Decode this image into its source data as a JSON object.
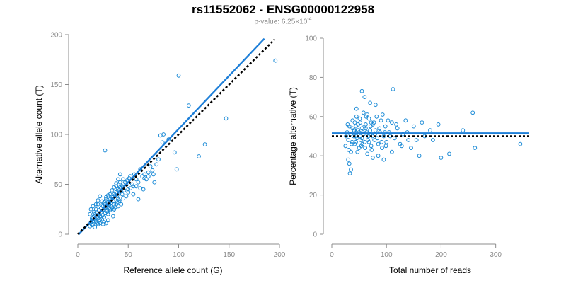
{
  "title": "rs11552062 - ENSG00000122958",
  "subtitle": {
    "prefix": "p-value: 6.25×10",
    "exponent": "-4"
  },
  "colors": {
    "points": "#1a8ad6",
    "fit_line": "#1e7fd8",
    "reference_line": "#000000",
    "axis": "#8c8c8c",
    "ticks": "#8a8a8a"
  },
  "chart_data": [
    {
      "type": "scatter",
      "xlabel": "Reference allele count (G)",
      "ylabel": "Alternative allele count (T)",
      "xlim": [
        0,
        200
      ],
      "ylim": [
        0,
        200
      ],
      "xticks": [
        0,
        50,
        100,
        150,
        200
      ],
      "yticks": [
        0,
        50,
        100,
        150,
        200
      ],
      "grid": false,
      "lines": [
        {
          "style": "solid",
          "color": "#1e7fd8",
          "points": [
            [
              1,
              0
            ],
            [
              185,
              196
            ]
          ]
        },
        {
          "style": "dotted",
          "color": "#000000",
          "points": [
            [
              0,
              0
            ],
            [
              195,
              195
            ]
          ]
        }
      ],
      "points": [
        [
          13,
          12
        ],
        [
          14,
          16
        ],
        [
          15,
          13
        ],
        [
          16,
          18
        ],
        [
          17,
          20
        ],
        [
          18,
          15
        ],
        [
          19,
          22
        ],
        [
          20,
          19
        ],
        [
          21,
          24
        ],
        [
          22,
          18
        ],
        [
          23,
          26
        ],
        [
          24,
          22
        ],
        [
          25,
          28
        ],
        [
          26,
          25
        ],
        [
          27,
          30
        ],
        [
          28,
          27
        ],
        [
          29,
          23
        ],
        [
          30,
          32
        ],
        [
          31,
          29
        ],
        [
          32,
          35
        ],
        [
          33,
          31
        ],
        [
          34,
          38
        ],
        [
          35,
          33
        ],
        [
          36,
          40
        ],
        [
          37,
          36
        ],
        [
          38,
          42
        ],
        [
          39,
          39
        ],
        [
          40,
          45
        ],
        [
          41,
          41
        ],
        [
          42,
          47
        ],
        [
          15,
          10
        ],
        [
          18,
          25
        ],
        [
          20,
          30
        ],
        [
          22,
          14
        ],
        [
          24,
          33
        ],
        [
          26,
          12
        ],
        [
          28,
          35
        ],
        [
          30,
          20
        ],
        [
          32,
          40
        ],
        [
          34,
          26
        ],
        [
          36,
          30
        ],
        [
          38,
          48
        ],
        [
          40,
          35
        ],
        [
          42,
          52
        ],
        [
          44,
          40
        ],
        [
          45,
          55
        ],
        [
          46,
          44
        ],
        [
          48,
          50
        ],
        [
          50,
          45
        ],
        [
          52,
          58
        ],
        [
          54,
          50
        ],
        [
          55,
          48
        ],
        [
          56,
          60
        ],
        [
          58,
          55
        ],
        [
          60,
          52
        ],
        [
          62,
          65
        ],
        [
          64,
          58
        ],
        [
          66,
          60
        ],
        [
          68,
          55
        ],
        [
          70,
          62
        ],
        [
          72,
          68
        ],
        [
          75,
          60
        ],
        [
          78,
          70
        ],
        [
          80,
          75
        ],
        [
          82,
          99
        ],
        [
          84,
          92
        ],
        [
          85,
          100
        ],
        [
          90,
          95
        ],
        [
          98,
          65
        ],
        [
          96,
          82
        ],
        [
          100,
          159
        ],
        [
          110,
          129
        ],
        [
          120,
          78
        ],
        [
          126,
          90
        ],
        [
          147,
          116
        ],
        [
          196,
          174
        ],
        [
          27,
          84
        ],
        [
          55,
          40
        ],
        [
          60,
          35
        ],
        [
          65,
          45
        ],
        [
          12,
          8
        ],
        [
          14,
          9
        ],
        [
          16,
          12
        ],
        [
          17,
          7
        ],
        [
          19,
          11
        ],
        [
          21,
          13
        ],
        [
          23,
          17
        ],
        [
          25,
          19
        ],
        [
          27,
          21
        ],
        [
          29,
          24
        ],
        [
          31,
          26
        ],
        [
          33,
          28
        ],
        [
          35,
          24
        ],
        [
          37,
          27
        ],
        [
          39,
          32
        ],
        [
          41,
          34
        ],
        [
          43,
          30
        ],
        [
          12,
          20
        ],
        [
          13,
          25
        ],
        [
          15,
          28
        ],
        [
          16,
          22
        ],
        [
          18,
          30
        ],
        [
          20,
          34
        ],
        [
          22,
          38
        ],
        [
          24,
          29
        ],
        [
          26,
          32
        ],
        [
          28,
          37
        ],
        [
          30,
          39
        ],
        [
          32,
          33
        ],
        [
          34,
          44
        ],
        [
          36,
          47
        ],
        [
          38,
          51
        ],
        [
          40,
          55
        ],
        [
          42,
          60
        ],
        [
          44,
          48
        ],
        [
          35,
          18
        ],
        [
          30,
          14
        ],
        [
          25,
          10
        ],
        [
          28,
          11
        ],
        [
          40,
          28
        ],
        [
          45,
          36
        ],
        [
          50,
          42
        ],
        [
          52,
          46
        ],
        [
          48,
          38
        ],
        [
          58,
          48
        ],
        [
          62,
          46
        ],
        [
          66,
          56
        ],
        [
          70,
          58
        ],
        [
          74,
          64
        ],
        [
          76,
          52
        ],
        [
          14,
          14
        ],
        [
          15,
          17
        ],
        [
          17,
          15
        ],
        [
          19,
          17
        ],
        [
          21,
          20
        ],
        [
          23,
          22
        ],
        [
          25,
          24
        ],
        [
          27,
          26
        ],
        [
          29,
          28
        ],
        [
          31,
          31
        ],
        [
          33,
          34
        ],
        [
          35,
          37
        ],
        [
          37,
          39
        ],
        [
          39,
          41
        ],
        [
          41,
          44
        ],
        [
          43,
          46
        ],
        [
          45,
          50
        ],
        [
          47,
          52
        ],
        [
          49,
          54
        ],
        [
          51,
          56
        ],
        [
          20,
          10
        ],
        [
          24,
          15
        ],
        [
          30,
          22
        ],
        [
          36,
          25
        ],
        [
          42,
          33
        ],
        [
          18,
          13
        ],
        [
          22,
          11
        ],
        [
          26,
          17
        ],
        [
          32,
          25
        ],
        [
          38,
          30
        ]
      ]
    },
    {
      "type": "scatter",
      "xlabel": "Total number of reads",
      "ylabel": "Percentage alternative (T)",
      "xlim": [
        0,
        360
      ],
      "ylim": [
        0,
        100
      ],
      "xticks": [
        0,
        100,
        200,
        300
      ],
      "yticks": [
        0,
        20,
        40,
        60,
        80,
        100
      ],
      "grid": false,
      "lines": [
        {
          "style": "solid",
          "color": "#1e7fd8",
          "points": [
            [
              0,
              51.5
            ],
            [
              360,
              51.5
            ]
          ]
        },
        {
          "style": "dotted",
          "color": "#000000",
          "points": [
            [
              0,
              50
            ],
            [
              360,
              50
            ]
          ]
        }
      ],
      "points": [
        [
          25,
          45
        ],
        [
          28,
          52
        ],
        [
          30,
          48
        ],
        [
          32,
          55
        ],
        [
          35,
          42
        ],
        [
          38,
          58
        ],
        [
          40,
          50
        ],
        [
          42,
          46
        ],
        [
          45,
          60
        ],
        [
          48,
          53
        ],
        [
          50,
          44
        ],
        [
          52,
          57
        ],
        [
          55,
          49
        ],
        [
          58,
          62
        ],
        [
          60,
          47
        ],
        [
          62,
          54
        ],
        [
          65,
          41
        ],
        [
          68,
          59
        ],
        [
          70,
          51
        ],
        [
          72,
          45
        ],
        [
          75,
          56
        ],
        [
          78,
          48
        ],
        [
          80,
          53
        ],
        [
          82,
          60
        ],
        [
          85,
          46
        ],
        [
          88,
          52
        ],
        [
          90,
          58
        ],
        [
          92,
          44
        ],
        [
          95,
          50
        ],
        [
          98,
          55
        ],
        [
          100,
          47
        ],
        [
          105,
          52
        ],
        [
          110,
          57
        ],
        [
          115,
          49
        ],
        [
          120,
          54
        ],
        [
          125,
          46
        ],
        [
          130,
          51
        ],
        [
          135,
          58
        ],
        [
          140,
          48
        ],
        [
          150,
          55
        ],
        [
          30,
          38
        ],
        [
          32,
          36
        ],
        [
          35,
          33
        ],
        [
          33,
          31
        ],
        [
          45,
          64
        ],
        [
          55,
          73
        ],
        [
          60,
          70
        ],
        [
          70,
          67
        ],
        [
          80,
          66
        ],
        [
          112,
          74
        ],
        [
          38,
          54
        ],
        [
          42,
          57
        ],
        [
          46,
          49
        ],
        [
          50,
          52
        ],
        [
          54,
          45
        ],
        [
          58,
          51
        ],
        [
          62,
          56
        ],
        [
          66,
          48
        ],
        [
          70,
          53
        ],
        [
          74,
          50
        ],
        [
          26,
          50
        ],
        [
          29,
          56
        ],
        [
          31,
          43
        ],
        [
          34,
          51
        ],
        [
          37,
          47
        ],
        [
          41,
          53
        ],
        [
          44,
          55
        ],
        [
          47,
          42
        ],
        [
          51,
          59
        ],
        [
          53,
          48
        ],
        [
          57,
          52
        ],
        [
          61,
          44
        ],
        [
          63,
          60
        ],
        [
          67,
          50
        ],
        [
          71,
          55
        ],
        [
          73,
          43
        ],
        [
          77,
          57
        ],
        [
          79,
          51
        ],
        [
          83,
          49
        ],
        [
          87,
          54
        ],
        [
          91,
          47
        ],
        [
          93,
          61
        ],
        [
          97,
          52
        ],
        [
          99,
          45
        ],
        [
          103,
          58
        ],
        [
          107,
          50
        ],
        [
          118,
          56
        ],
        [
          128,
          45
        ],
        [
          138,
          52
        ],
        [
          145,
          44
        ],
        [
          155,
          48
        ],
        [
          160,
          40
        ],
        [
          165,
          57
        ],
        [
          170,
          50
        ],
        [
          180,
          53
        ],
        [
          185,
          48
        ],
        [
          195,
          56
        ],
        [
          200,
          39
        ],
        [
          215,
          41
        ],
        [
          240,
          53
        ],
        [
          258,
          62
        ],
        [
          262,
          44
        ],
        [
          345,
          46
        ],
        [
          110,
          42
        ],
        [
          95,
          38
        ],
        [
          85,
          40
        ],
        [
          75,
          39
        ],
        [
          65,
          61
        ],
        [
          55,
          54
        ],
        [
          45,
          50
        ],
        [
          36,
          46
        ],
        [
          40,
          53
        ],
        [
          44,
          47
        ],
        [
          48,
          56
        ],
        [
          52,
          50
        ],
        [
          56,
          46
        ],
        [
          60,
          55
        ],
        [
          64,
          52
        ],
        [
          68,
          47
        ],
        [
          72,
          57
        ]
      ]
    }
  ]
}
